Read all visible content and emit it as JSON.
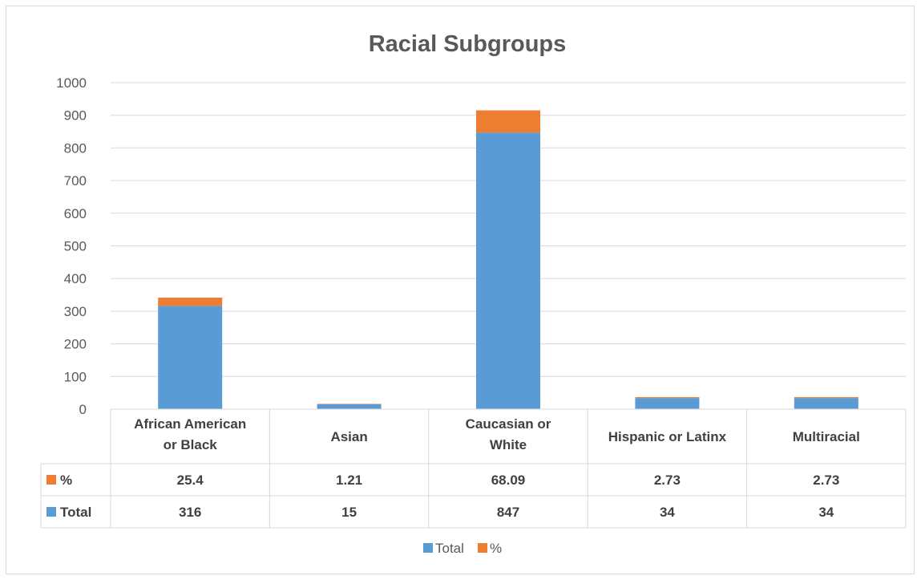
{
  "chart_data": {
    "type": "bar",
    "stacked": true,
    "title": "Racial Subgroups",
    "categories": [
      [
        "African American",
        "or Black"
      ],
      [
        "Asian"
      ],
      [
        "Caucasian or",
        "White"
      ],
      [
        "Hispanic or Latinx"
      ],
      [
        "Multiracial"
      ]
    ],
    "series": [
      {
        "name": "Total",
        "color": "#5b9bd5",
        "values": [
          316,
          15,
          847,
          34,
          34
        ],
        "labels": [
          "316",
          "15",
          "847",
          "34",
          "34"
        ]
      },
      {
        "name": "%",
        "color": "#ed7d31",
        "values": [
          25.4,
          1.21,
          68.09,
          2.73,
          2.73
        ],
        "labels": [
          "25.4",
          "1.21",
          "68.09",
          "2.73",
          "2.73"
        ]
      }
    ],
    "ylim": [
      0,
      1000
    ],
    "yticks": [
      0,
      100,
      200,
      300,
      400,
      500,
      600,
      700,
      800,
      900,
      1000
    ],
    "grid": true,
    "data_table": true,
    "legend_position": "bottom"
  }
}
